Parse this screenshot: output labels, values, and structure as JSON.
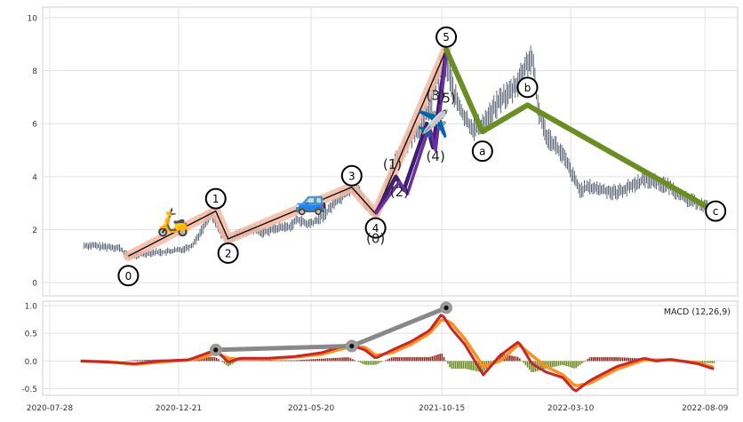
{
  "chart_data": [
    {
      "type": "line",
      "panel": "price",
      "ylim": [
        -0.5,
        10.4
      ],
      "yticks": [
        0,
        2,
        4,
        6,
        8,
        10
      ],
      "grid": true,
      "price_series": {
        "x": [
          "2020-09-05",
          "2020-09-15",
          "2020-09-25",
          "2020-10-05",
          "2020-10-15",
          "2020-10-25",
          "2020-11-05",
          "2020-11-15",
          "2020-11-25",
          "2020-12-05",
          "2020-12-15",
          "2020-12-25",
          "2021-01-05",
          "2021-01-15",
          "2021-01-25",
          "2021-02-01",
          "2021-02-08",
          "2021-02-15",
          "2021-02-25",
          "2021-03-05",
          "2021-03-15",
          "2021-03-25",
          "2021-04-05",
          "2021-04-15",
          "2021-04-25",
          "2021-05-05",
          "2021-05-15",
          "2021-05-25",
          "2021-06-05",
          "2021-06-15",
          "2021-06-25",
          "2021-07-05",
          "2021-07-15",
          "2021-07-20",
          "2021-07-25",
          "2021-08-01",
          "2021-08-05",
          "2021-08-10",
          "2021-08-15",
          "2021-08-22",
          "2021-09-01",
          "2021-09-10",
          "2021-09-20",
          "2021-10-01",
          "2021-10-10",
          "2021-10-20",
          "2021-10-30",
          "2021-11-10",
          "2021-11-20",
          "2021-12-01",
          "2021-12-10",
          "2021-12-20",
          "2022-01-01",
          "2022-01-10",
          "2022-01-18",
          "2022-01-25",
          "2022-02-01",
          "2022-02-10",
          "2022-02-20",
          "2022-03-01",
          "2022-03-10",
          "2022-03-20",
          "2022-04-01",
          "2022-04-15",
          "2022-05-01",
          "2022-05-15",
          "2022-06-01",
          "2022-06-15",
          "2022-07-01",
          "2022-07-15",
          "2022-08-01",
          "2022-08-15"
        ],
        "values": [
          1.4,
          1.4,
          1.35,
          1.35,
          1.3,
          1.0,
          1.05,
          1.1,
          1.15,
          1.15,
          1.2,
          1.25,
          1.4,
          1.9,
          2.6,
          2.3,
          1.8,
          1.65,
          1.8,
          1.9,
          2.0,
          1.9,
          2.0,
          2.1,
          2.1,
          2.4,
          2.2,
          2.3,
          2.6,
          3.0,
          3.3,
          3.6,
          3.4,
          3.0,
          2.8,
          2.6,
          2.9,
          3.2,
          3.8,
          4.6,
          5.0,
          5.5,
          5.8,
          6.6,
          7.8,
          8.3,
          7.0,
          6.2,
          5.8,
          6.0,
          6.4,
          6.9,
          7.2,
          7.6,
          8.2,
          8.5,
          6.6,
          5.6,
          5.2,
          4.8,
          4.2,
          3.5,
          3.6,
          3.5,
          3.4,
          3.6,
          3.9,
          3.8,
          3.6,
          3.2,
          3.0,
          2.8
        ]
      },
      "impulse_wave": {
        "points": [
          {
            "x": "2020-10-25",
            "y": 1.0,
            "label": "0"
          },
          {
            "x": "2021-02-01",
            "y": 2.7,
            "label": "1"
          },
          {
            "x": "2021-02-15",
            "y": 1.65,
            "label": "2"
          },
          {
            "x": "2021-07-05",
            "y": 3.6,
            "label": "3"
          },
          {
            "x": "2021-08-01",
            "y": 2.6,
            "label": "4"
          },
          {
            "x": "2021-10-20",
            "y": 8.8,
            "label": "5"
          }
        ]
      },
      "sub_waves": [
        {
          "points": [
            {
              "x": "2021-08-01",
              "y": 2.6
            },
            {
              "x": "2021-08-24",
              "y": 4.0
            },
            {
              "x": "2021-09-02",
              "y": 3.5
            },
            {
              "x": "2021-09-28",
              "y": 6.0
            },
            {
              "x": "2021-10-05",
              "y": 5.1
            },
            {
              "x": "2021-10-20",
              "y": 8.7
            }
          ]
        },
        {
          "points": [
            {
              "x": "2021-08-01",
              "y": 2.6
            },
            {
              "x": "2021-08-28",
              "y": 3.8
            },
            {
              "x": "2021-09-06",
              "y": 3.35
            },
            {
              "x": "2021-10-01",
              "y": 5.9
            },
            {
              "x": "2021-10-08",
              "y": 5.0
            },
            {
              "x": "2021-10-20",
              "y": 8.6
            }
          ]
        }
      ],
      "sub_wave_labels": [
        {
          "x": "2021-08-01",
          "y": 1.5,
          "text": "(0)"
        },
        {
          "x": "2021-08-20",
          "y": 4.3,
          "text": "(1)"
        },
        {
          "x": "2021-08-28",
          "y": 3.25,
          "text": "(2)"
        },
        {
          "x": "2021-10-08",
          "y": 6.9,
          "text": "(3)"
        },
        {
          "x": "2021-10-08",
          "y": 4.6,
          "text": "(4)"
        },
        {
          "x": "2021-10-20",
          "y": 6.8,
          "text": "(5)"
        }
      ],
      "correction_wave": {
        "points": [
          {
            "x": "2021-10-20",
            "y": 8.8,
            "label": "5"
          },
          {
            "x": "2021-11-30",
            "y": 5.7,
            "label": "a"
          },
          {
            "x": "2022-01-20",
            "y": 6.7,
            "label": "b"
          },
          {
            "x": "2022-08-20",
            "y": 2.7,
            "label": "c"
          }
        ]
      },
      "emoji_markers": [
        {
          "x": "2020-12-15",
          "y": 2.35,
          "glyph": "🛵"
        },
        {
          "x": "2021-05-20",
          "y": 3.15,
          "glyph": "🚙"
        },
        {
          "x": "2021-10-05",
          "y": 6.05,
          "glyph": "✈️"
        }
      ],
      "colors": {
        "price": "#4a5568",
        "impulse_glow": "#f3b9a2",
        "impulse_line": "#111111",
        "sub_wave_1": "#3d1f6e",
        "sub_wave_2": "#6a2fa0",
        "correction": "#6b8e23"
      }
    },
    {
      "type": "line",
      "panel": "macd",
      "legend": "MACD (12,26,9)",
      "legend_position": "top-right",
      "ylim": [
        -0.62,
        1.08
      ],
      "yticks": [
        -0.5,
        0.0,
        0.5,
        1.0
      ],
      "grid": true,
      "xticks": [
        "2020-07-28",
        "2020-12-21",
        "2021-05-20",
        "2021-10-15",
        "2022-03-10",
        "2022-08-09"
      ],
      "macd": {
        "x": [
          "2020-09-01",
          "2020-10-01",
          "2020-11-01",
          "2020-12-01",
          "2021-01-01",
          "2021-01-15",
          "2021-02-01",
          "2021-02-15",
          "2021-03-01",
          "2021-04-01",
          "2021-05-01",
          "2021-06-01",
          "2021-07-01",
          "2021-07-20",
          "2021-08-01",
          "2021-08-20",
          "2021-09-10",
          "2021-10-01",
          "2021-10-15",
          "2021-10-25",
          "2021-11-10",
          "2021-12-01",
          "2021-12-20",
          "2022-01-10",
          "2022-01-25",
          "2022-02-10",
          "2022-03-01",
          "2022-03-15",
          "2022-04-01",
          "2022-05-01",
          "2022-06-01",
          "2022-06-15",
          "2022-07-01",
          "2022-08-01",
          "2022-08-20"
        ],
        "values": [
          0.0,
          -0.02,
          -0.05,
          0.0,
          0.02,
          0.1,
          0.2,
          -0.02,
          0.05,
          0.05,
          0.08,
          0.15,
          0.3,
          0.2,
          0.05,
          0.2,
          0.35,
          0.55,
          0.85,
          0.6,
          0.3,
          -0.25,
          0.1,
          0.35,
          -0.05,
          -0.2,
          -0.3,
          -0.55,
          -0.35,
          -0.1,
          0.05,
          0.0,
          0.03,
          -0.05,
          -0.15
        ]
      },
      "signal": {
        "x": [
          "2020-09-01",
          "2020-10-01",
          "2020-11-01",
          "2020-12-01",
          "2021-01-01",
          "2021-01-15",
          "2021-02-01",
          "2021-02-15",
          "2021-03-01",
          "2021-04-01",
          "2021-05-01",
          "2021-06-01",
          "2021-07-01",
          "2021-07-20",
          "2021-08-01",
          "2021-08-20",
          "2021-09-10",
          "2021-10-01",
          "2021-10-15",
          "2021-10-25",
          "2021-11-10",
          "2021-12-01",
          "2021-12-20",
          "2022-01-10",
          "2022-01-25",
          "2022-02-10",
          "2022-03-01",
          "2022-03-15",
          "2022-04-01",
          "2022-05-01",
          "2022-06-01",
          "2022-06-15",
          "2022-07-01",
          "2022-08-01",
          "2022-08-20"
        ],
        "values": [
          0.0,
          -0.01,
          -0.06,
          -0.02,
          0.02,
          0.05,
          0.15,
          0.05,
          0.03,
          0.04,
          0.07,
          0.12,
          0.25,
          0.25,
          0.1,
          0.15,
          0.3,
          0.5,
          0.75,
          0.7,
          0.4,
          -0.1,
          0.0,
          0.3,
          0.1,
          -0.1,
          -0.25,
          -0.45,
          -0.4,
          -0.15,
          0.02,
          0.02,
          0.02,
          -0.03,
          -0.12
        ]
      },
      "trend_connector": {
        "points": [
          {
            "x": "2021-02-01",
            "y": 0.2
          },
          {
            "x": "2021-07-05",
            "y": 0.27
          },
          {
            "x": "2021-10-20",
            "y": 0.96
          }
        ]
      },
      "colors": {
        "macd": "#c62828",
        "signal": "#ff8f1f",
        "hist_pos": "#8b2a1f",
        "hist_neg": "#6b8e23",
        "connector": "#888888"
      }
    }
  ]
}
